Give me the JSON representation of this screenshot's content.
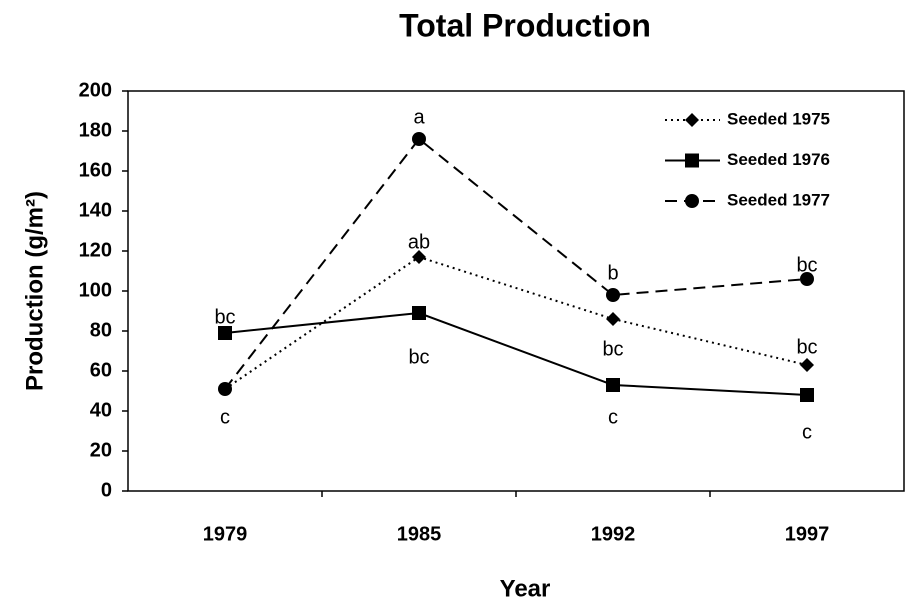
{
  "chart_data": {
    "type": "line",
    "title": "Total Production",
    "xlabel": "Year",
    "ylabel": "Production (g/m²)",
    "categories": [
      "1979",
      "1985",
      "1992",
      "1997"
    ],
    "series": [
      {
        "name": "Seeded 1975",
        "color": "#000",
        "marker": "diamond",
        "dash": "dotted",
        "values": [
          51,
          117,
          86,
          63
        ],
        "annotations": [
          null,
          "ab",
          "bc",
          "bc"
        ]
      },
      {
        "name": "Seeded 1976",
        "color": "#000",
        "marker": "square",
        "dash": "solid",
        "values": [
          79,
          89,
          53,
          48
        ],
        "annotations": [
          "bc",
          "bc",
          "c",
          "c"
        ]
      },
      {
        "name": "Seeded 1977",
        "color": "#000",
        "marker": "circle",
        "dash": "dashed",
        "values": [
          51,
          176,
          98,
          106
        ],
        "annotations": [
          "c",
          "a",
          "b",
          "bc"
        ]
      }
    ],
    "ylim": [
      0,
      200
    ],
    "yticks": [
      0,
      20,
      40,
      60,
      80,
      100,
      120,
      140,
      160,
      180,
      200
    ],
    "legend": "top-right"
  }
}
